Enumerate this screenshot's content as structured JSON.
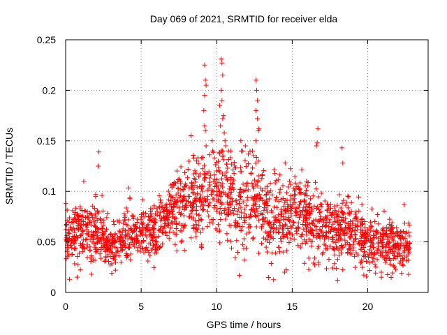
{
  "chart_data": {
    "type": "scatter",
    "title": "Day 069 of 2021, SRMTID for receiver elda",
    "xlabel": "GPS time / hours",
    "ylabel": "SRMTID / TECUs",
    "xlim": [
      0,
      24
    ],
    "ylim": [
      0,
      0.25
    ],
    "xticks": [
      0,
      5,
      10,
      15,
      20
    ],
    "xtick_labels": [
      "0",
      "5",
      "10",
      "15",
      "20"
    ],
    "yticks": [
      0,
      0.05,
      0.1,
      0.15,
      0.2,
      0.25
    ],
    "ytick_labels": [
      "0",
      "0.05",
      "0.1",
      "0.15",
      "0.2",
      "0.25"
    ],
    "grid": true,
    "marker": "+",
    "color": "#ff0000",
    "series": [
      {
        "name": "SRMTID",
        "profile_hours": [
          0,
          0.5,
          1,
          1.5,
          2,
          2.5,
          3,
          3.5,
          4,
          4.5,
          5,
          5.5,
          6,
          6.5,
          7,
          7.5,
          8,
          8.5,
          9,
          9.5,
          10,
          10.5,
          11,
          11.5,
          12,
          12.5,
          13,
          13.5,
          14,
          14.5,
          15,
          15.5,
          16,
          16.5,
          17,
          17.5,
          18,
          18.5,
          19,
          19.5,
          20,
          20.5,
          21,
          21.5,
          22,
          22.5,
          22.8
        ],
        "profile_median": [
          0.055,
          0.058,
          0.062,
          0.058,
          0.06,
          0.05,
          0.045,
          0.048,
          0.058,
          0.062,
          0.058,
          0.055,
          0.06,
          0.068,
          0.078,
          0.085,
          0.09,
          0.088,
          0.085,
          0.095,
          0.1,
          0.105,
          0.095,
          0.085,
          0.09,
          0.095,
          0.085,
          0.07,
          0.068,
          0.08,
          0.085,
          0.08,
          0.075,
          0.07,
          0.062,
          0.06,
          0.06,
          0.065,
          0.058,
          0.055,
          0.05,
          0.048,
          0.045,
          0.048,
          0.047,
          0.045,
          0.042
        ],
        "profile_spread": [
          0.012,
          0.013,
          0.014,
          0.014,
          0.016,
          0.014,
          0.013,
          0.014,
          0.014,
          0.014,
          0.013,
          0.013,
          0.014,
          0.015,
          0.016,
          0.018,
          0.02,
          0.02,
          0.022,
          0.024,
          0.025,
          0.025,
          0.024,
          0.022,
          0.022,
          0.022,
          0.021,
          0.02,
          0.019,
          0.02,
          0.02,
          0.019,
          0.018,
          0.018,
          0.016,
          0.015,
          0.015,
          0.016,
          0.014,
          0.014,
          0.013,
          0.013,
          0.012,
          0.013,
          0.012,
          0.012,
          0.012
        ],
        "point_count": 2000,
        "extreme_points": [
          {
            "x": 9.2,
            "y": 0.225
          },
          {
            "x": 9.25,
            "y": 0.21
          },
          {
            "x": 9.3,
            "y": 0.205
          },
          {
            "x": 9.2,
            "y": 0.195
          },
          {
            "x": 9.15,
            "y": 0.18
          },
          {
            "x": 9.2,
            "y": 0.165
          },
          {
            "x": 9.25,
            "y": 0.16
          },
          {
            "x": 9.3,
            "y": 0.145
          },
          {
            "x": 10.3,
            "y": 0.231
          },
          {
            "x": 10.35,
            "y": 0.227
          },
          {
            "x": 10.4,
            "y": 0.215
          },
          {
            "x": 10.3,
            "y": 0.2
          },
          {
            "x": 10.35,
            "y": 0.19
          },
          {
            "x": 10.2,
            "y": 0.185
          },
          {
            "x": 10.45,
            "y": 0.175
          },
          {
            "x": 10.4,
            "y": 0.172
          },
          {
            "x": 10.25,
            "y": 0.165
          },
          {
            "x": 10.5,
            "y": 0.158
          },
          {
            "x": 10.55,
            "y": 0.15
          },
          {
            "x": 10.6,
            "y": 0.145
          },
          {
            "x": 12.6,
            "y": 0.21
          },
          {
            "x": 12.65,
            "y": 0.2
          },
          {
            "x": 12.7,
            "y": 0.19
          },
          {
            "x": 12.6,
            "y": 0.18
          },
          {
            "x": 12.7,
            "y": 0.172
          },
          {
            "x": 12.8,
            "y": 0.162
          },
          {
            "x": 12.75,
            "y": 0.16
          },
          {
            "x": 12.6,
            "y": 0.15
          },
          {
            "x": 16.7,
            "y": 0.162
          },
          {
            "x": 16.65,
            "y": 0.148
          },
          {
            "x": 16.6,
            "y": 0.145
          },
          {
            "x": 18.3,
            "y": 0.143
          },
          {
            "x": 18.35,
            "y": 0.128
          },
          {
            "x": 2.2,
            "y": 0.139
          },
          {
            "x": 2.15,
            "y": 0.125
          },
          {
            "x": 1.2,
            "y": 0.11
          },
          {
            "x": 8.3,
            "y": 0.155
          },
          {
            "x": 9.7,
            "y": 0.15
          },
          {
            "x": 11.6,
            "y": 0.15
          },
          {
            "x": 11.9,
            "y": 0.145
          },
          {
            "x": 22.4,
            "y": 0.087
          },
          {
            "x": 11.5,
            "y": 0.017
          },
          {
            "x": 1.7,
            "y": 0.018
          },
          {
            "x": 18.0,
            "y": 0.012
          },
          {
            "x": 14.5,
            "y": 0.02
          },
          {
            "x": 20.9,
            "y": 0.015
          },
          {
            "x": 3.3,
            "y": 0.022
          }
        ]
      }
    ]
  }
}
